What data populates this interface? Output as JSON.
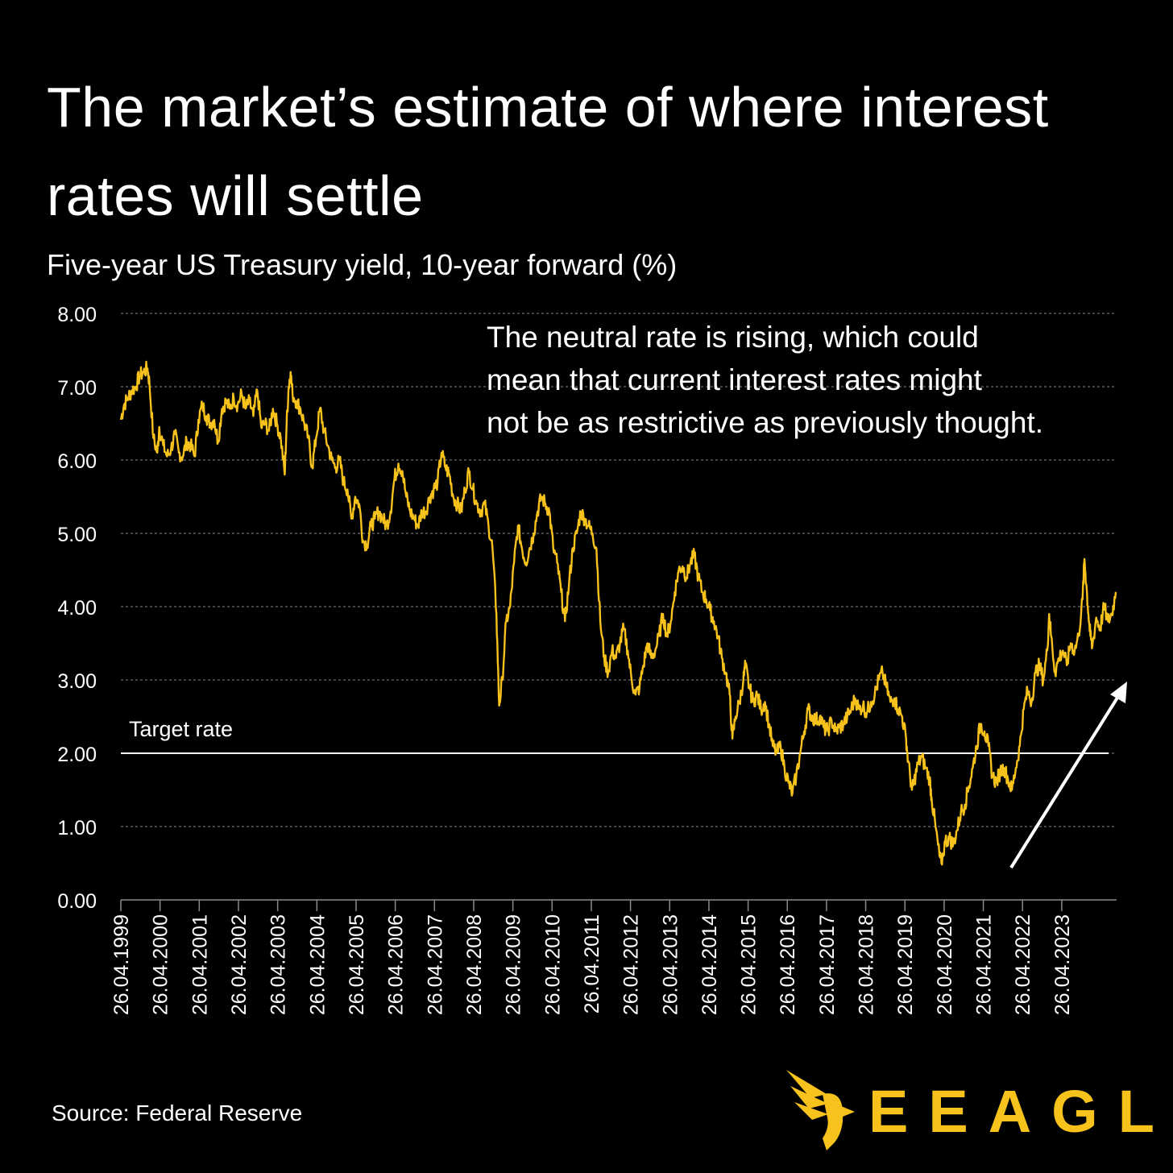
{
  "title": "The market’s estimate of where interest rates will settle",
  "subtitle": "Five-year US Treasury yield, 10-year forward (%)",
  "annotation": {
    "line1": "The neutral rate is rising, which could",
    "line2": "mean that current interest rates might",
    "line3": "not be as restrictive as previously thought."
  },
  "source": "Source: Federal Reserve",
  "logo": {
    "text": "EEAGLI",
    "icon": "eagle-icon"
  },
  "colors": {
    "background": "#000000",
    "series": "#f7c21b",
    "text": "#ffffff",
    "grid": "#8a8a8a"
  },
  "chart_data": {
    "type": "line",
    "title": "",
    "xlabel": "",
    "ylabel": "",
    "ylim": [
      0,
      8
    ],
    "y_ticks": [
      "0.00",
      "1.00",
      "2.00",
      "3.00",
      "4.00",
      "5.00",
      "6.00",
      "7.00",
      "8.00"
    ],
    "x_ticks": [
      "26.04.1999",
      "26.04.2000",
      "26.04.2001",
      "26.04.2002",
      "26.04.2003",
      "26.04.2004",
      "26.04.2005",
      "26.04.2006",
      "26.04.2007",
      "26.04.2008",
      "26.04.2009",
      "26.04.2010",
      "26.04.2011",
      "26.04.2012",
      "26.04.2013",
      "26.04.2014",
      "26.04.2015",
      "26.04.2016",
      "26.04.2017",
      "26.04.2018",
      "26.04.2019",
      "26.04.2020",
      "26.04.2021",
      "26.04.2022",
      "26.04.2023"
    ],
    "grid": "horizontal dashed",
    "reference_line": {
      "label": "Target rate",
      "value": 2.0
    },
    "series": [
      {
        "values": [
          [
            1999.32,
            6.55
          ],
          [
            1999.4,
            6.75
          ],
          [
            1999.5,
            6.85
          ],
          [
            1999.6,
            6.95
          ],
          [
            1999.7,
            7.0
          ],
          [
            1999.8,
            7.15
          ],
          [
            1999.9,
            7.2
          ],
          [
            2000.0,
            7.25
          ],
          [
            2000.05,
            7.05
          ],
          [
            2000.15,
            6.3
          ],
          [
            2000.25,
            6.1
          ],
          [
            2000.3,
            6.45
          ],
          [
            2000.4,
            6.2
          ],
          [
            2000.5,
            6.05
          ],
          [
            2000.6,
            6.15
          ],
          [
            2000.7,
            6.35
          ],
          [
            2000.8,
            6.1
          ],
          [
            2000.9,
            6.05
          ],
          [
            2001.0,
            6.25
          ],
          [
            2001.1,
            6.2
          ],
          [
            2001.2,
            6.05
          ],
          [
            2001.3,
            6.55
          ],
          [
            2001.4,
            6.75
          ],
          [
            2001.5,
            6.6
          ],
          [
            2001.6,
            6.5
          ],
          [
            2001.7,
            6.55
          ],
          [
            2001.8,
            6.25
          ],
          [
            2001.9,
            6.7
          ],
          [
            2002.0,
            6.8
          ],
          [
            2002.1,
            6.7
          ],
          [
            2002.2,
            6.85
          ],
          [
            2002.3,
            6.75
          ],
          [
            2002.4,
            6.9
          ],
          [
            2002.5,
            6.7
          ],
          [
            2002.6,
            6.8
          ],
          [
            2002.7,
            6.6
          ],
          [
            2002.8,
            6.95
          ],
          [
            2002.9,
            6.45
          ],
          [
            2003.0,
            6.5
          ],
          [
            2003.1,
            6.4
          ],
          [
            2003.2,
            6.7
          ],
          [
            2003.3,
            6.5
          ],
          [
            2003.4,
            6.3
          ],
          [
            2003.5,
            5.8
          ],
          [
            2003.55,
            6.5
          ],
          [
            2003.6,
            7.0
          ],
          [
            2003.65,
            7.2
          ],
          [
            2003.7,
            6.9
          ],
          [
            2003.8,
            6.8
          ],
          [
            2003.9,
            6.7
          ],
          [
            2004.0,
            6.5
          ],
          [
            2004.1,
            6.3
          ],
          [
            2004.2,
            5.9
          ],
          [
            2004.3,
            6.3
          ],
          [
            2004.4,
            6.7
          ],
          [
            2004.5,
            6.4
          ],
          [
            2004.6,
            6.2
          ],
          [
            2004.7,
            6.0
          ],
          [
            2004.8,
            5.9
          ],
          [
            2004.9,
            6.0
          ],
          [
            2005.0,
            5.7
          ],
          [
            2005.1,
            5.6
          ],
          [
            2005.2,
            5.2
          ],
          [
            2005.3,
            5.5
          ],
          [
            2005.4,
            5.4
          ],
          [
            2005.5,
            4.9
          ],
          [
            2005.6,
            4.85
          ],
          [
            2005.7,
            5.1
          ],
          [
            2005.8,
            5.2
          ],
          [
            2005.9,
            5.3
          ],
          [
            2006.0,
            5.2
          ],
          [
            2006.1,
            5.1
          ],
          [
            2006.2,
            5.3
          ],
          [
            2006.3,
            5.75
          ],
          [
            2006.4,
            5.95
          ],
          [
            2006.5,
            5.85
          ],
          [
            2006.6,
            5.5
          ],
          [
            2006.7,
            5.3
          ],
          [
            2006.8,
            5.2
          ],
          [
            2006.9,
            5.1
          ],
          [
            2007.0,
            5.3
          ],
          [
            2007.1,
            5.3
          ],
          [
            2007.2,
            5.5
          ],
          [
            2007.3,
            5.6
          ],
          [
            2007.4,
            5.7
          ],
          [
            2007.5,
            6.1
          ],
          [
            2007.6,
            5.9
          ],
          [
            2007.7,
            5.8
          ],
          [
            2007.8,
            5.5
          ],
          [
            2007.9,
            5.4
          ],
          [
            2008.0,
            5.3
          ],
          [
            2008.1,
            5.6
          ],
          [
            2008.2,
            5.85
          ],
          [
            2008.3,
            5.6
          ],
          [
            2008.4,
            5.4
          ],
          [
            2008.5,
            5.3
          ],
          [
            2008.6,
            5.4
          ],
          [
            2008.7,
            5.1
          ],
          [
            2008.8,
            4.8
          ],
          [
            2008.9,
            3.9
          ],
          [
            2008.97,
            2.65
          ],
          [
            2009.05,
            3.0
          ],
          [
            2009.15,
            3.8
          ],
          [
            2009.25,
            4.0
          ],
          [
            2009.35,
            4.6
          ],
          [
            2009.45,
            5.1
          ],
          [
            2009.55,
            4.8
          ],
          [
            2009.65,
            4.6
          ],
          [
            2009.75,
            4.8
          ],
          [
            2009.85,
            5.0
          ],
          [
            2009.95,
            5.3
          ],
          [
            2010.05,
            5.5
          ],
          [
            2010.15,
            5.4
          ],
          [
            2010.25,
            5.3
          ],
          [
            2010.35,
            4.8
          ],
          [
            2010.45,
            4.6
          ],
          [
            2010.55,
            4.2
          ],
          [
            2010.65,
            3.8
          ],
          [
            2010.75,
            4.3
          ],
          [
            2010.85,
            4.8
          ],
          [
            2010.95,
            5.0
          ],
          [
            2011.05,
            5.3
          ],
          [
            2011.15,
            5.2
          ],
          [
            2011.25,
            5.1
          ],
          [
            2011.35,
            5.0
          ],
          [
            2011.45,
            4.8
          ],
          [
            2011.55,
            3.8
          ],
          [
            2011.65,
            3.3
          ],
          [
            2011.75,
            3.1
          ],
          [
            2011.85,
            3.4
          ],
          [
            2011.95,
            3.3
          ],
          [
            2012.05,
            3.5
          ],
          [
            2012.15,
            3.7
          ],
          [
            2012.25,
            3.4
          ],
          [
            2012.35,
            3.0
          ],
          [
            2012.45,
            2.8
          ],
          [
            2012.55,
            2.9
          ],
          [
            2012.65,
            3.2
          ],
          [
            2012.75,
            3.5
          ],
          [
            2012.85,
            3.3
          ],
          [
            2012.95,
            3.4
          ],
          [
            2013.05,
            3.6
          ],
          [
            2013.15,
            3.9
          ],
          [
            2013.25,
            3.6
          ],
          [
            2013.35,
            3.8
          ],
          [
            2013.45,
            4.2
          ],
          [
            2013.55,
            4.5
          ],
          [
            2013.65,
            4.55
          ],
          [
            2013.75,
            4.4
          ],
          [
            2013.85,
            4.6
          ],
          [
            2013.95,
            4.7
          ],
          [
            2014.05,
            4.4
          ],
          [
            2014.15,
            4.2
          ],
          [
            2014.25,
            4.1
          ],
          [
            2014.35,
            3.95
          ],
          [
            2014.45,
            3.8
          ],
          [
            2014.55,
            3.6
          ],
          [
            2014.65,
            3.3
          ],
          [
            2014.75,
            3.1
          ],
          [
            2014.85,
            2.8
          ],
          [
            2014.92,
            2.2
          ],
          [
            2015.0,
            2.5
          ],
          [
            2015.1,
            2.7
          ],
          [
            2015.2,
            3.0
          ],
          [
            2015.25,
            3.2
          ],
          [
            2015.35,
            2.9
          ],
          [
            2015.45,
            2.7
          ],
          [
            2015.55,
            2.8
          ],
          [
            2015.65,
            2.6
          ],
          [
            2015.75,
            2.7
          ],
          [
            2015.85,
            2.4
          ],
          [
            2015.95,
            2.1
          ],
          [
            2016.05,
            2.0
          ],
          [
            2016.15,
            2.1
          ],
          [
            2016.25,
            1.8
          ],
          [
            2016.35,
            1.6
          ],
          [
            2016.45,
            1.45
          ],
          [
            2016.55,
            1.7
          ],
          [
            2016.65,
            2.0
          ],
          [
            2016.75,
            2.3
          ],
          [
            2016.85,
            2.6
          ],
          [
            2016.95,
            2.5
          ],
          [
            2017.05,
            2.45
          ],
          [
            2017.15,
            2.5
          ],
          [
            2017.25,
            2.35
          ],
          [
            2017.35,
            2.3
          ],
          [
            2017.45,
            2.45
          ],
          [
            2017.55,
            2.3
          ],
          [
            2017.65,
            2.35
          ],
          [
            2017.75,
            2.4
          ],
          [
            2017.85,
            2.5
          ],
          [
            2017.95,
            2.6
          ],
          [
            2018.05,
            2.75
          ],
          [
            2018.15,
            2.6
          ],
          [
            2018.25,
            2.65
          ],
          [
            2018.35,
            2.55
          ],
          [
            2018.45,
            2.7
          ],
          [
            2018.55,
            2.8
          ],
          [
            2018.65,
            3.0
          ],
          [
            2018.75,
            3.1
          ],
          [
            2018.85,
            2.9
          ],
          [
            2018.95,
            2.7
          ],
          [
            2019.05,
            2.75
          ],
          [
            2019.15,
            2.6
          ],
          [
            2019.25,
            2.5
          ],
          [
            2019.35,
            2.2
          ],
          [
            2019.4,
            1.9
          ],
          [
            2019.5,
            1.5
          ],
          [
            2019.55,
            1.6
          ],
          [
            2019.65,
            1.85
          ],
          [
            2019.75,
            1.95
          ],
          [
            2019.85,
            1.8
          ],
          [
            2019.95,
            1.65
          ],
          [
            2020.0,
            1.4
          ],
          [
            2020.1,
            1.0
          ],
          [
            2020.2,
            0.6
          ],
          [
            2020.25,
            0.5
          ],
          [
            2020.35,
            0.8
          ],
          [
            2020.45,
            0.85
          ],
          [
            2020.55,
            0.75
          ],
          [
            2020.65,
            0.95
          ],
          [
            2020.75,
            1.2
          ],
          [
            2020.85,
            1.3
          ],
          [
            2020.95,
            1.55
          ],
          [
            2021.05,
            1.8
          ],
          [
            2021.15,
            2.1
          ],
          [
            2021.25,
            2.4
          ],
          [
            2021.35,
            2.3
          ],
          [
            2021.45,
            2.1
          ],
          [
            2021.55,
            1.7
          ],
          [
            2021.65,
            1.6
          ],
          [
            2021.75,
            1.75
          ],
          [
            2021.85,
            1.8
          ],
          [
            2021.95,
            1.65
          ],
          [
            2022.05,
            1.5
          ],
          [
            2022.15,
            1.8
          ],
          [
            2022.25,
            2.1
          ],
          [
            2022.35,
            2.6
          ],
          [
            2022.45,
            2.85
          ],
          [
            2022.55,
            2.7
          ],
          [
            2022.65,
            3.1
          ],
          [
            2022.75,
            3.2
          ],
          [
            2022.85,
            3.0
          ],
          [
            2022.95,
            3.4
          ],
          [
            2023.0,
            3.9
          ],
          [
            2023.05,
            3.6
          ],
          [
            2023.15,
            3.1
          ],
          [
            2023.25,
            3.3
          ],
          [
            2023.35,
            3.4
          ],
          [
            2023.45,
            3.2
          ],
          [
            2023.55,
            3.5
          ],
          [
            2023.65,
            3.4
          ],
          [
            2023.75,
            3.6
          ],
          [
            2023.85,
            4.1
          ],
          [
            2023.9,
            4.65
          ],
          [
            2023.95,
            4.3
          ],
          [
            2024.0,
            3.9
          ],
          [
            2024.05,
            3.6
          ],
          [
            2024.1,
            3.45
          ],
          [
            2024.2,
            3.85
          ],
          [
            2024.3,
            3.7
          ],
          [
            2024.4,
            4.0
          ],
          [
            2024.5,
            3.8
          ],
          [
            2024.6,
            3.9
          ],
          [
            2024.7,
            4.2
          ]
        ]
      }
    ]
  }
}
